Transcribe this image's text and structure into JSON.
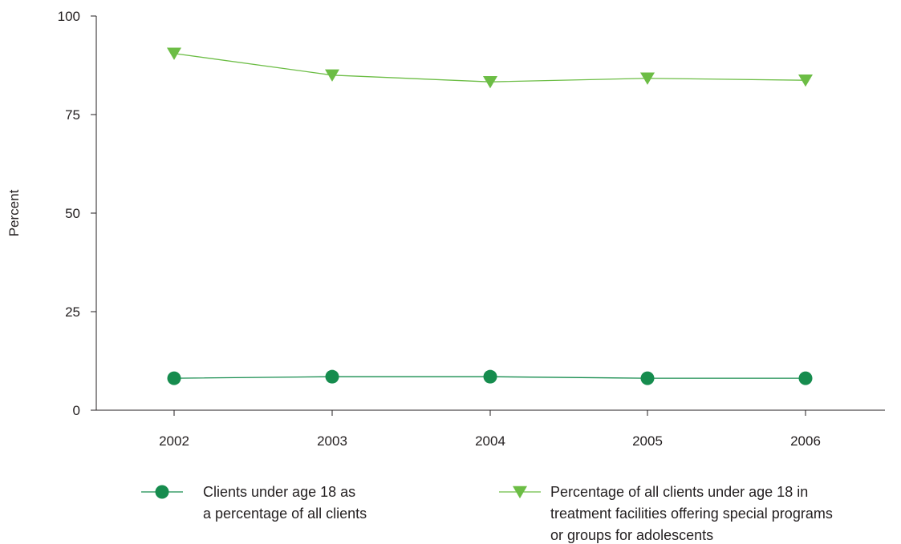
{
  "chart_data": {
    "type": "line",
    "title": "",
    "xlabel": "",
    "ylabel": "Percent",
    "categories": [
      "2002",
      "2003",
      "2004",
      "2005",
      "2006"
    ],
    "ylim": [
      0,
      100
    ],
    "yticks": [
      "0",
      "25",
      "50",
      "75",
      "100"
    ],
    "grid": false,
    "legend_position": "bottom",
    "series": [
      {
        "name": "Clients under age 18 as a percentage of all clients",
        "legend_lines": [
          "Clients under age 18 as",
          "a percentage of all clients"
        ],
        "values": [
          8.1,
          8.5,
          8.5,
          8.1,
          8.1
        ],
        "color": "#168c4e",
        "marker": "circle"
      },
      {
        "name": "Percentage of all clients under age 18 in treatment facilities offering special programs or groups for adolescents",
        "legend_lines": [
          "Percentage of all clients under age 18 in",
          "treatment facilities offering special programs",
          "or groups for adolescents"
        ],
        "values": [
          90.5,
          85.0,
          83.3,
          84.2,
          83.7
        ],
        "color": "#6cbd45",
        "marker": "triangle-down"
      }
    ]
  }
}
